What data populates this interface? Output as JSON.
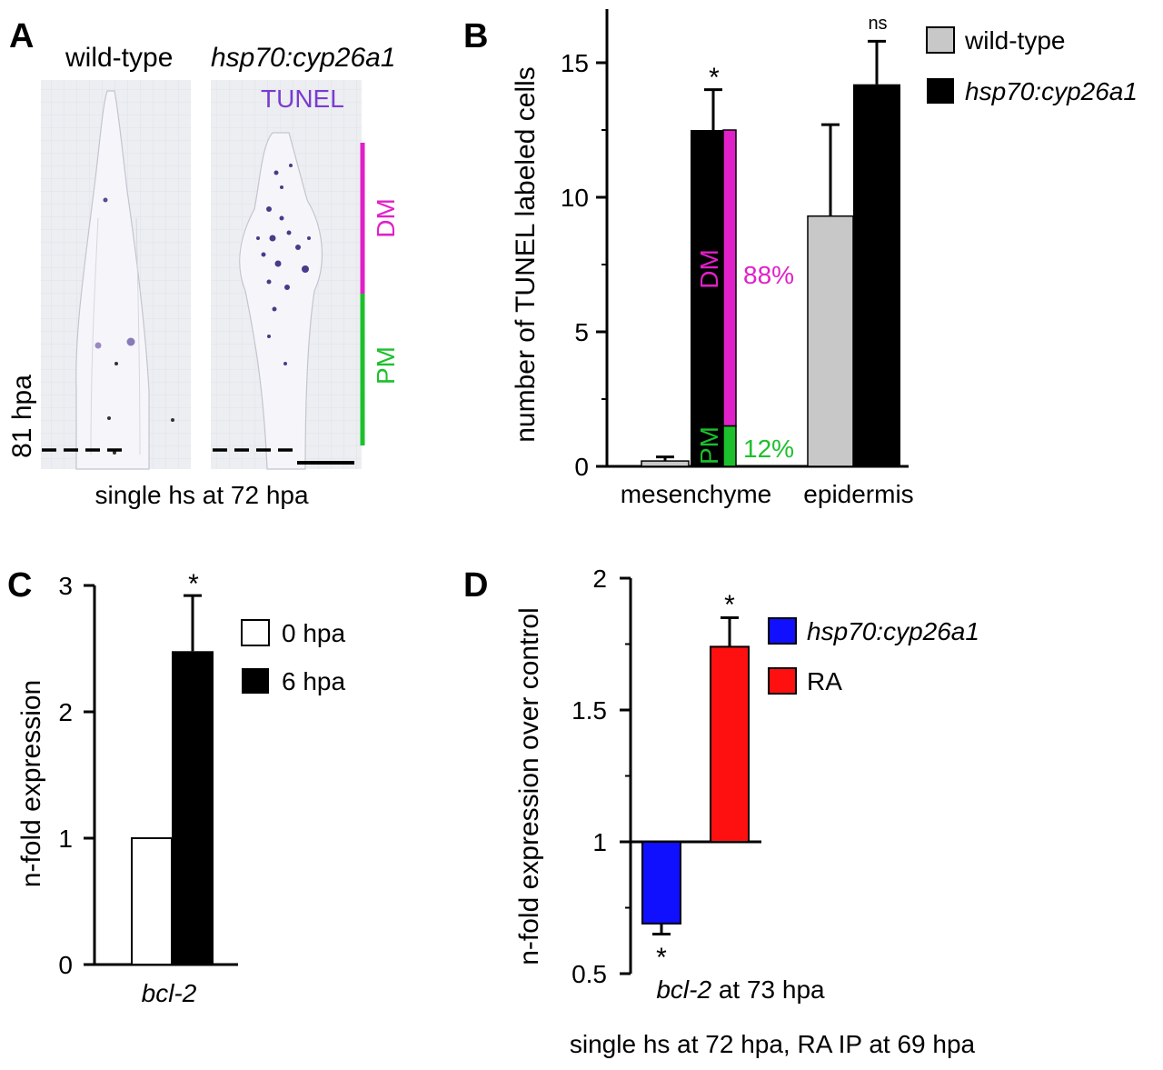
{
  "colors": {
    "magenta": "#e020c8",
    "green": "#1cc02c",
    "tunel_purple": "#7a3cd0",
    "wt_gray": "#c8c8c8",
    "blue": "#1010ff",
    "red": "#ff1010"
  },
  "panelA": {
    "letter": "A",
    "col1": "wild-type",
    "col2": "hsp70:cyp26a1",
    "stain": "TUNEL",
    "dm_label": "DM",
    "pm_label": "PM",
    "side_label": "81 hpa",
    "caption": "single hs at 72 hpa"
  },
  "chart_data": [
    {
      "panel": "B",
      "type": "bar",
      "ylabel": "number of TUNEL labeled cells",
      "categories": [
        "mesenchyme",
        "epidermis"
      ],
      "yticks": [
        "0",
        "5",
        "10",
        "15"
      ],
      "ylim": [
        0,
        16.5
      ],
      "series": [
        {
          "name": "wild-type",
          "values": [
            0.2,
            9.3
          ],
          "errors": [
            0.15,
            3.4
          ],
          "color": "#c8c8c8"
        },
        {
          "name": "hsp70:cyp26a1",
          "values": [
            12.5,
            14.2
          ],
          "errors": [
            1.5,
            1.6
          ],
          "color": "#000000"
        }
      ],
      "stacked_breakdown": {
        "category": "mesenchyme",
        "series": "hsp70:cyp26a1",
        "parts": [
          {
            "label": "PM",
            "value": 1.5,
            "percent": "12%"
          },
          {
            "label": "DM",
            "value": 11.0,
            "percent": "88%"
          }
        ]
      },
      "annotations": [
        "*",
        "ns"
      ]
    },
    {
      "panel": "C",
      "type": "bar",
      "ylabel": "n-fold expression",
      "xlabel": "bcl-2",
      "yticks": [
        "0",
        "1",
        "2",
        "3"
      ],
      "ylim": [
        0,
        3
      ],
      "series": [
        {
          "name": "0 hpa",
          "value": 1.0,
          "error": 0
        },
        {
          "name": "6 hpa",
          "value": 2.48,
          "error": 0.44
        }
      ],
      "annotation": "*"
    },
    {
      "panel": "D",
      "type": "bar",
      "ylabel": "n-fold expression over control",
      "xlabel_italic": "bcl-2",
      "xlabel_rest": " at 73 hpa",
      "yticks": [
        "0.5",
        "1",
        "1.5",
        "2"
      ],
      "ylim": [
        0.5,
        2
      ],
      "baseline": 1,
      "series": [
        {
          "name": "hsp70:cyp26a1",
          "value": 0.69,
          "error": 0.04,
          "color": "#1010ff"
        },
        {
          "name": "RA",
          "value": 1.74,
          "error": 0.11,
          "color": "#ff1010"
        }
      ],
      "annotation": "*",
      "caption": "single hs at 72 hpa, RA IP at 69 hpa"
    }
  ],
  "panel_letters": {
    "B": "B",
    "C": "C",
    "D": "D"
  }
}
